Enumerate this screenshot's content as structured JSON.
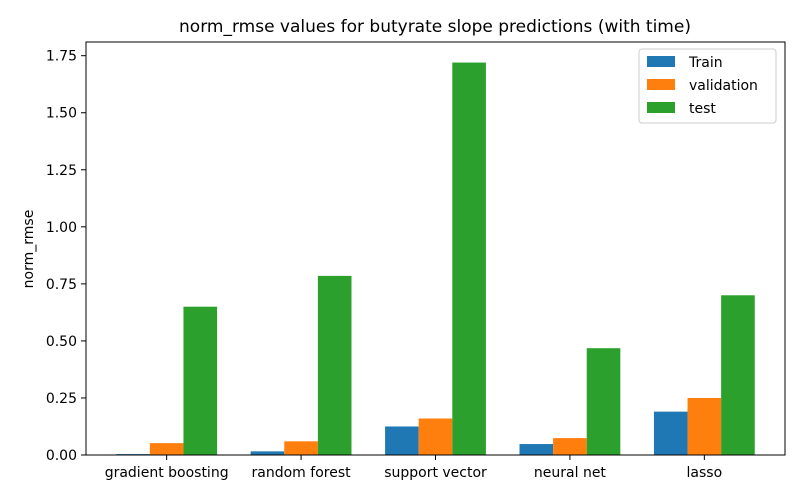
{
  "chart_data": {
    "type": "bar",
    "title": "norm_rmse values for butyrate slope predictions (with time)",
    "xlabel": "",
    "ylabel": "norm_rmse",
    "categories": [
      "gradient boosting",
      "random forest",
      "support vector",
      "neural net",
      "lasso"
    ],
    "series": [
      {
        "name": "Train",
        "color": "#1f77b4",
        "values": [
          0.004,
          0.016,
          0.125,
          0.048,
          0.19
        ]
      },
      {
        "name": "validation",
        "color": "#ff7f0e",
        "values": [
          0.052,
          0.06,
          0.16,
          0.074,
          0.25
        ]
      },
      {
        "name": "test",
        "color": "#2ca02c",
        "values": [
          0.65,
          0.785,
          1.72,
          0.468,
          0.7
        ]
      }
    ],
    "ylim": [
      0,
      1.81
    ],
    "yticks": [
      "0.00",
      "0.25",
      "0.50",
      "0.75",
      "1.00",
      "1.25",
      "1.50",
      "1.75"
    ],
    "grid": false,
    "legend_position": "top-right"
  }
}
